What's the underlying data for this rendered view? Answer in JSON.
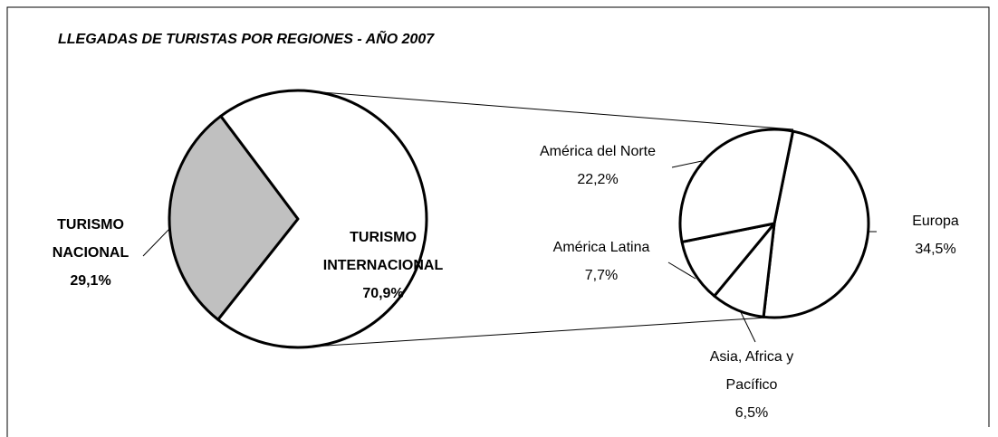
{
  "chart_data": [
    {
      "type": "pie",
      "title": "LLEGADAS DE TURISTAS POR REGIONES - AÑO 2007",
      "categories": [
        "TURISMO NACIONAL",
        "TURISMO INTERNACIONAL"
      ],
      "values": [
        29.1,
        70.9
      ],
      "value_labels": [
        "29,1%",
        "70,9%"
      ],
      "colors": [
        "#c0c0c0",
        "#ffffff"
      ]
    },
    {
      "type": "pie",
      "categories": [
        "Europa",
        "Asia, Africa y Pacífico",
        "América Latina",
        "América del Norte"
      ],
      "values": [
        34.5,
        6.5,
        7.7,
        22.2
      ],
      "value_labels": [
        "34,5%",
        "6,5%",
        "7,7%",
        "22,2%"
      ],
      "colors": [
        "#ffffff",
        "#ffffff",
        "#ffffff",
        "#ffffff"
      ]
    }
  ]
}
